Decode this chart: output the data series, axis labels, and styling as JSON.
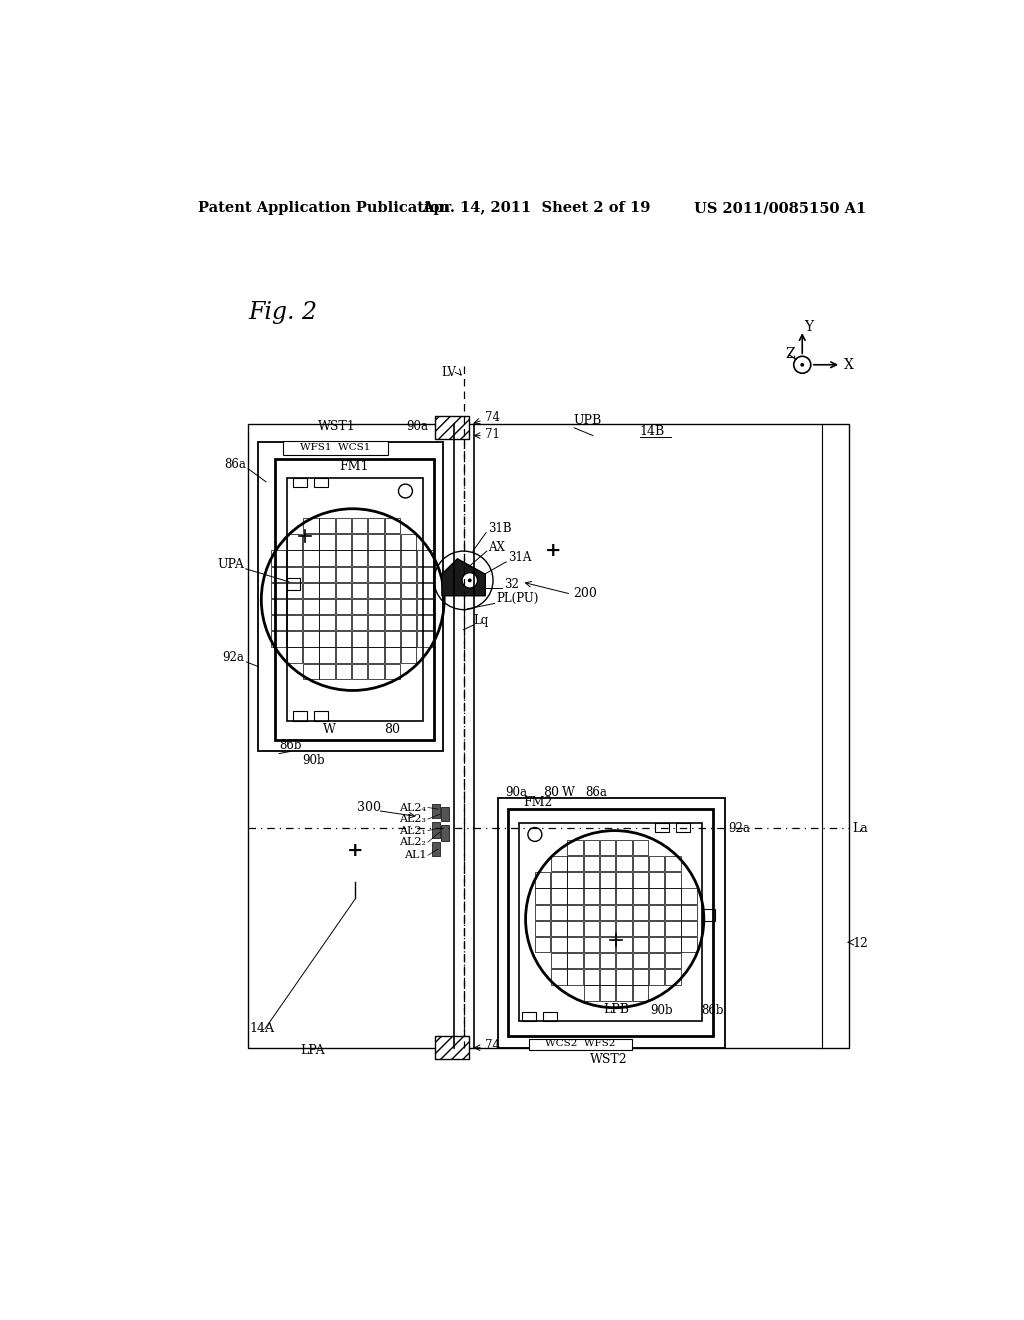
{
  "bg_color": "#ffffff",
  "header_left": "Patent Application Publication",
  "header_mid": "Apr. 14, 2011  Sheet 2 of 19",
  "header_right": "US 2011/0085150 A1",
  "fig_label": "Fig. 2"
}
